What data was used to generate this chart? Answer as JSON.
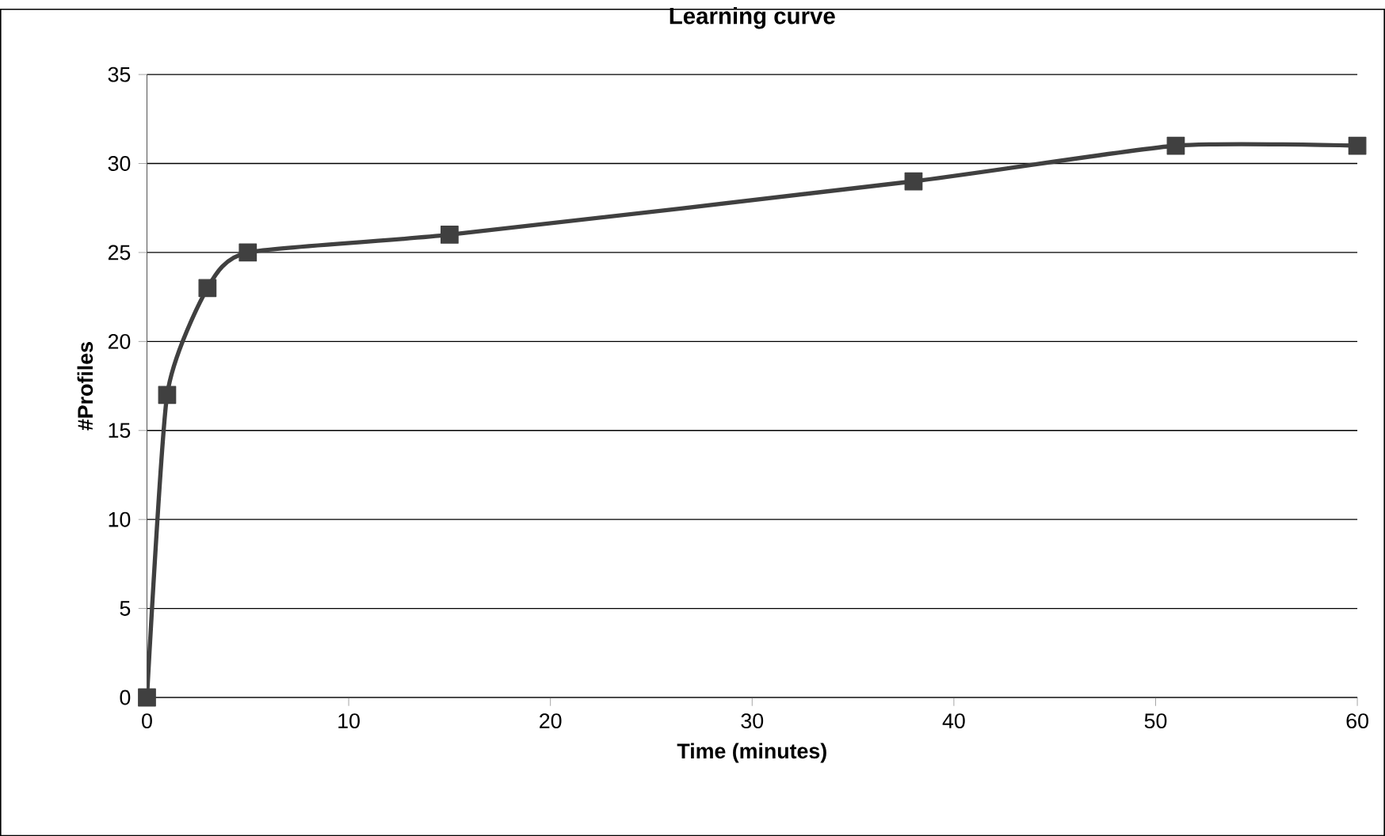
{
  "chart_data": {
    "type": "line",
    "title": "Learning curve",
    "xlabel": "Time (minutes)",
    "ylabel": "#Profiles",
    "x": [
      0,
      1,
      3,
      5,
      15,
      38,
      51,
      60
    ],
    "series": [
      {
        "color": "#404040",
        "values": [
          0,
          17,
          23,
          25,
          26,
          29,
          31,
          31
        ]
      }
    ],
    "xlim": [
      0,
      60
    ],
    "xticks": [
      0,
      10,
      20,
      30,
      40,
      50,
      60
    ],
    "ylim": [
      0,
      35
    ],
    "yticks": [
      0,
      5,
      10,
      15,
      20,
      25,
      30,
      35
    ],
    "grid": "y",
    "marker": "square",
    "line_style": "solid"
  }
}
